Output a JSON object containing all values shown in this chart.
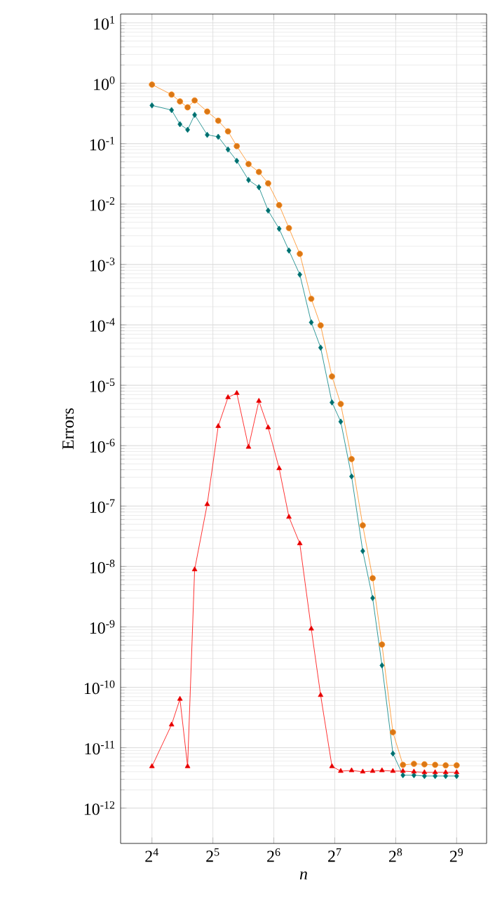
{
  "chart_data": {
    "type": "line",
    "xlabel": "n",
    "ylabel": "Errors",
    "log": "xy",
    "grid": true,
    "line_style": "solid",
    "x": [
      16,
      20,
      22,
      24,
      26,
      30,
      34,
      38,
      42,
      48,
      54,
      60,
      68,
      76,
      86,
      98,
      109,
      124,
      137,
      155,
      176,
      197,
      219,
      248,
      278,
      315,
      355,
      401,
      452,
      512
    ],
    "xlim": [
      11.2,
      720
    ],
    "ylim": [
      2.6e-13,
      14
    ],
    "xticks": [
      {
        "value": 16,
        "label": "2$^{4}$"
      },
      {
        "value": 32,
        "label": "2$^{5}$"
      },
      {
        "value": 64,
        "label": "2$^{6}$"
      },
      {
        "value": 128,
        "label": "2$^{7}$"
      },
      {
        "value": 256,
        "label": "2$^{8}$"
      },
      {
        "value": 512,
        "label": "2$^{9}$"
      }
    ],
    "yticks": [
      {
        "value": 1e-12,
        "label": "10$^{-12}$"
      },
      {
        "value": 1e-11,
        "label": "10$^{-11}$"
      },
      {
        "value": 1e-10,
        "label": "10$^{-10}$"
      },
      {
        "value": 1e-09,
        "label": "10$^{-9}$"
      },
      {
        "value": 1e-08,
        "label": "10$^{-8}$"
      },
      {
        "value": 1e-07,
        "label": "10$^{-7}$"
      },
      {
        "value": 1e-06,
        "label": "10$^{-6}$"
      },
      {
        "value": 1e-05,
        "label": "10$^{-5}$"
      },
      {
        "value": 0.0001,
        "label": "10$^{-4}$"
      },
      {
        "value": 0.001,
        "label": "10$^{-3}$"
      },
      {
        "value": 0.01,
        "label": "10$^{-2}$"
      },
      {
        "value": 0.1,
        "label": "10$^{-1}$"
      },
      {
        "value": 1,
        "label": "10$^{0}$"
      },
      {
        "value": 10,
        "label": "10$^{1}$"
      }
    ],
    "series": [
      {
        "color": "#ff8c1a",
        "marker": "circle",
        "values": [
          0.95,
          0.65,
          0.5,
          0.4,
          0.52,
          0.34,
          0.24,
          0.16,
          0.091,
          0.046,
          0.034,
          0.022,
          0.0096,
          0.004,
          0.0015,
          0.00027,
          9.8e-05,
          1.4e-05,
          4.9e-06,
          6e-07,
          4.8e-08,
          6.4e-09,
          5.1e-10,
          1.8e-11,
          5.2e-12,
          5.4e-12,
          5.3e-12,
          5.2e-12,
          5.1e-12,
          5.1e-12
        ]
      },
      {
        "color": "#008080",
        "marker": "diamond",
        "values": [
          0.43,
          0.36,
          0.21,
          0.17,
          0.3,
          0.14,
          0.13,
          0.08,
          0.052,
          0.025,
          0.019,
          0.0078,
          0.0039,
          0.0017,
          0.00068,
          0.00011,
          4.2e-05,
          5.2e-06,
          2.5e-06,
          3.1e-07,
          1.8e-08,
          3e-09,
          2.3e-10,
          8e-12,
          3.5e-12,
          3.5e-12,
          3.4e-12,
          3.4e-12,
          3.4e-12,
          3.4e-12
        ]
      },
      {
        "color": "#ff0000",
        "marker": "triangle",
        "values": [
          4.9e-12,
          2.4e-11,
          6.4e-11,
          4.9e-12,
          8.9e-09,
          1.07e-07,
          2.1e-06,
          6.3e-06,
          7.4e-06,
          9.5e-07,
          5.5e-06,
          2e-06,
          4.2e-07,
          6.6e-08,
          2.4e-08,
          9.3e-10,
          7.4e-11,
          4.9e-12,
          4.1e-12,
          4.2e-12,
          4e-12,
          4.1e-12,
          4.2e-12,
          4.1e-12,
          4.1e-12,
          4e-12,
          3.9e-12,
          3.9e-12,
          3.9e-12,
          3.9e-12
        ]
      }
    ]
  }
}
